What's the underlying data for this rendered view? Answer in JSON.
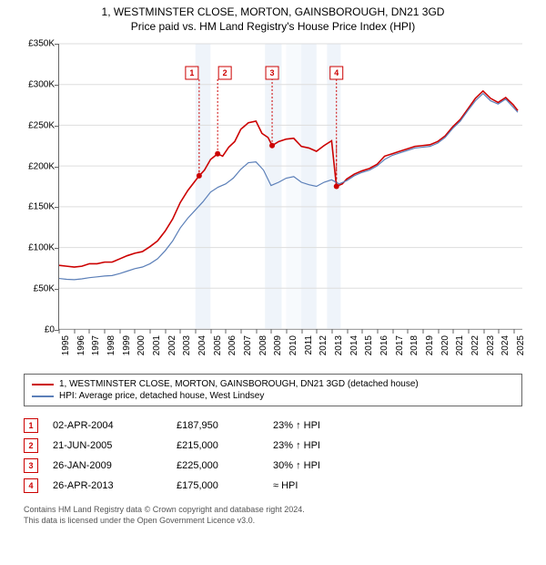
{
  "title": "1, WESTMINSTER CLOSE, MORTON, GAINSBOROUGH, DN21 3GD",
  "subtitle": "Price paid vs. HM Land Registry's House Price Index (HPI)",
  "chart": {
    "xlim": [
      1995,
      2025.6
    ],
    "ylim": [
      0,
      350000
    ],
    "ytick_step": 50000,
    "xtick_step": 1,
    "ylabel_prefix": "£",
    "ylabel_suffix": "K",
    "background_color": "#ffffff",
    "grid_color": "#dddddd",
    "axis_color": "#666666",
    "years": [
      1995,
      1996,
      1997,
      1998,
      1999,
      2000,
      2001,
      2002,
      2003,
      2004,
      2005,
      2006,
      2007,
      2008,
      2009,
      2010,
      2011,
      2012,
      2013,
      2014,
      2015,
      2016,
      2017,
      2018,
      2019,
      2020,
      2021,
      2022,
      2023,
      2024,
      2025
    ],
    "shaded_bands": [
      {
        "from": 2004.0,
        "to": 2005.0,
        "color": "#dbe7f5"
      },
      {
        "from": 2008.6,
        "to": 2009.7,
        "color": "#dbe7f5"
      },
      {
        "from": 2010.0,
        "to": 2011.0,
        "color": "#eef3fa"
      },
      {
        "from": 2011.0,
        "to": 2012.0,
        "color": "#dbe7f5"
      },
      {
        "from": 2012.7,
        "to": 2013.6,
        "color": "#dbe7f5"
      }
    ],
    "series": [
      {
        "name": "subject",
        "legend": "1, WESTMINSTER CLOSE, MORTON, GAINSBOROUGH, DN21 3GD (detached house)",
        "color": "#cc0000",
        "width": 1.6,
        "data": [
          [
            1995.0,
            78000
          ],
          [
            1995.5,
            77000
          ],
          [
            1996.0,
            76000
          ],
          [
            1996.5,
            77000
          ],
          [
            1997.0,
            80000
          ],
          [
            1997.5,
            80000
          ],
          [
            1998.0,
            82000
          ],
          [
            1998.5,
            82000
          ],
          [
            1999.0,
            86000
          ],
          [
            1999.5,
            90000
          ],
          [
            2000.0,
            93000
          ],
          [
            2000.5,
            95000
          ],
          [
            2001.0,
            101000
          ],
          [
            2001.5,
            108000
          ],
          [
            2002.0,
            120000
          ],
          [
            2002.5,
            135000
          ],
          [
            2003.0,
            155000
          ],
          [
            2003.5,
            170000
          ],
          [
            2004.0,
            182000
          ],
          [
            2004.25,
            187950
          ],
          [
            2004.6,
            195000
          ],
          [
            2005.0,
            208000
          ],
          [
            2005.47,
            215000
          ],
          [
            2005.8,
            212000
          ],
          [
            2006.2,
            223000
          ],
          [
            2006.6,
            230000
          ],
          [
            2007.0,
            245000
          ],
          [
            2007.5,
            253000
          ],
          [
            2008.0,
            255000
          ],
          [
            2008.4,
            240000
          ],
          [
            2008.8,
            235000
          ],
          [
            2009.07,
            225000
          ],
          [
            2009.5,
            230000
          ],
          [
            2010.0,
            233000
          ],
          [
            2010.5,
            234000
          ],
          [
            2011.0,
            224000
          ],
          [
            2011.5,
            222000
          ],
          [
            2012.0,
            218000
          ],
          [
            2012.5,
            225000
          ],
          [
            2013.0,
            231000
          ],
          [
            2013.32,
            175000
          ],
          [
            2013.7,
            178000
          ],
          [
            2014.0,
            184000
          ],
          [
            2014.5,
            190000
          ],
          [
            2015.0,
            194000
          ],
          [
            2015.5,
            197000
          ],
          [
            2016.0,
            202000
          ],
          [
            2016.5,
            212000
          ],
          [
            2017.0,
            215000
          ],
          [
            2017.5,
            218000
          ],
          [
            2018.0,
            221000
          ],
          [
            2018.5,
            224000
          ],
          [
            2019.0,
            225000
          ],
          [
            2019.5,
            226000
          ],
          [
            2020.0,
            230000
          ],
          [
            2020.5,
            237000
          ],
          [
            2021.0,
            248000
          ],
          [
            2021.5,
            257000
          ],
          [
            2022.0,
            270000
          ],
          [
            2022.5,
            283000
          ],
          [
            2023.0,
            292000
          ],
          [
            2023.5,
            283000
          ],
          [
            2024.0,
            278000
          ],
          [
            2024.5,
            284000
          ],
          [
            2025.0,
            275000
          ],
          [
            2025.3,
            268000
          ]
        ],
        "vertical_drops": [
          {
            "from": [
              2004.25,
              195000
            ],
            "to": [
              2004.25,
              187950
            ],
            "dashed": true
          },
          {
            "from": [
              2013.32,
              231000
            ],
            "to": [
              2013.32,
              175000
            ],
            "dashed": true
          }
        ]
      },
      {
        "name": "hpi",
        "legend": "HPI: Average price, detached house, West Lindsey",
        "color": "#5b7fb8",
        "width": 1.2,
        "data": [
          [
            1995.0,
            62000
          ],
          [
            1995.5,
            61000
          ],
          [
            1996.0,
            60500
          ],
          [
            1996.5,
            61500
          ],
          [
            1997.0,
            63000
          ],
          [
            1997.5,
            64000
          ],
          [
            1998.0,
            65000
          ],
          [
            1998.5,
            65500
          ],
          [
            1999.0,
            68000
          ],
          [
            1999.5,
            71000
          ],
          [
            2000.0,
            74000
          ],
          [
            2000.5,
            76000
          ],
          [
            2001.0,
            80000
          ],
          [
            2001.5,
            86000
          ],
          [
            2002.0,
            96000
          ],
          [
            2002.5,
            108000
          ],
          [
            2003.0,
            124000
          ],
          [
            2003.5,
            136000
          ],
          [
            2004.0,
            146000
          ],
          [
            2004.5,
            156000
          ],
          [
            2005.0,
            168000
          ],
          [
            2005.5,
            174000
          ],
          [
            2006.0,
            178000
          ],
          [
            2006.5,
            185000
          ],
          [
            2007.0,
            196000
          ],
          [
            2007.5,
            204000
          ],
          [
            2008.0,
            205000
          ],
          [
            2008.5,
            195000
          ],
          [
            2009.0,
            176000
          ],
          [
            2009.5,
            180000
          ],
          [
            2010.0,
            185000
          ],
          [
            2010.5,
            187000
          ],
          [
            2011.0,
            180000
          ],
          [
            2011.5,
            177000
          ],
          [
            2012.0,
            175000
          ],
          [
            2012.5,
            180000
          ],
          [
            2013.0,
            183000
          ],
          [
            2013.5,
            178000
          ],
          [
            2014.0,
            182000
          ],
          [
            2014.5,
            188000
          ],
          [
            2015.0,
            192000
          ],
          [
            2015.5,
            195000
          ],
          [
            2016.0,
            200000
          ],
          [
            2016.5,
            208000
          ],
          [
            2017.0,
            213000
          ],
          [
            2017.5,
            216000
          ],
          [
            2018.0,
            219000
          ],
          [
            2018.5,
            222000
          ],
          [
            2019.0,
            223000
          ],
          [
            2019.5,
            224000
          ],
          [
            2020.0,
            228000
          ],
          [
            2020.5,
            235000
          ],
          [
            2021.0,
            246000
          ],
          [
            2021.5,
            255000
          ],
          [
            2022.0,
            268000
          ],
          [
            2022.5,
            280000
          ],
          [
            2023.0,
            289000
          ],
          [
            2023.5,
            280000
          ],
          [
            2024.0,
            276000
          ],
          [
            2024.5,
            282000
          ],
          [
            2025.0,
            272000
          ],
          [
            2025.3,
            266000
          ]
        ]
      }
    ],
    "markers": [
      {
        "n": "1",
        "x": 2004.25,
        "y": 187950
      },
      {
        "n": "2",
        "x": 2005.47,
        "y": 215000
      },
      {
        "n": "3",
        "x": 2009.07,
        "y": 225000
      },
      {
        "n": "4",
        "x": 2013.32,
        "y": 175000
      }
    ],
    "flag_y_top": 322000,
    "marker_dot_color": "#cc0000",
    "marker_dot_radius": 3
  },
  "legend": {
    "items": [
      {
        "color": "#cc0000",
        "label": "1, WESTMINSTER CLOSE, MORTON, GAINSBOROUGH, DN21 3GD (detached house)"
      },
      {
        "color": "#5b7fb8",
        "label": "HPI: Average price, detached house, West Lindsey"
      }
    ]
  },
  "transactions": [
    {
      "n": "1",
      "date": "02-APR-2004",
      "price": "£187,950",
      "delta": "23% ↑ HPI"
    },
    {
      "n": "2",
      "date": "21-JUN-2005",
      "price": "£215,000",
      "delta": "23% ↑ HPI"
    },
    {
      "n": "3",
      "date": "26-JAN-2009",
      "price": "£225,000",
      "delta": "30% ↑ HPI"
    },
    {
      "n": "4",
      "date": "26-APR-2013",
      "price": "£175,000",
      "delta": "≈ HPI"
    }
  ],
  "footer": {
    "line1": "Contains HM Land Registry data © Crown copyright and database right 2024.",
    "line2": "This data is licensed under the Open Government Licence v3.0."
  }
}
